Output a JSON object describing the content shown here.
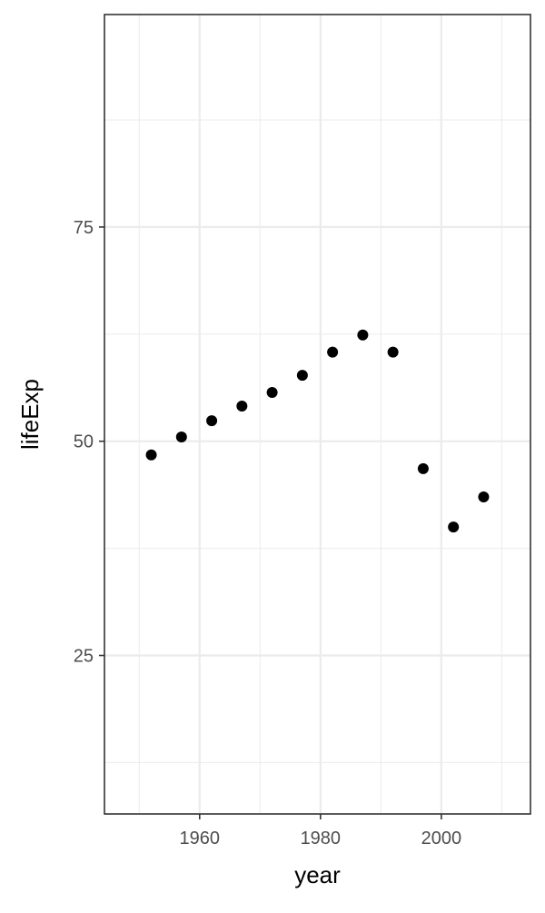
{
  "chart_data": {
    "type": "scatter",
    "title": "",
    "xlabel": "year",
    "ylabel": "lifeExp",
    "x": [
      1952,
      1957,
      1962,
      1967,
      1972,
      1977,
      1982,
      1987,
      1992,
      1997,
      2002,
      2007
    ],
    "y": [
      48.4,
      50.5,
      52.4,
      54.1,
      55.7,
      57.7,
      60.4,
      62.4,
      60.4,
      46.8,
      39.99,
      43.5
    ],
    "xlim": [
      1944.25,
      2014.75
    ],
    "ylim": [
      6.5,
      99.8
    ],
    "x_ticks": [
      1960,
      1980,
      2000
    ],
    "x_tick_labels": [
      "1960",
      "1980",
      "2000"
    ],
    "x_minor_ticks": [
      1950,
      1970,
      1990,
      2010
    ],
    "y_ticks": [
      25,
      50,
      75
    ],
    "y_tick_labels": [
      "25",
      "50",
      "75"
    ],
    "y_minor_ticks": [
      12.5,
      37.5,
      62.5,
      87.5
    ],
    "grid": true,
    "legend": "none",
    "colors": {
      "point": "#000000",
      "panel_border": "#333333",
      "grid": "#ebebeb",
      "tick_text": "#4d4d4d",
      "axis_title": "#000000",
      "background": "#ffffff"
    }
  }
}
